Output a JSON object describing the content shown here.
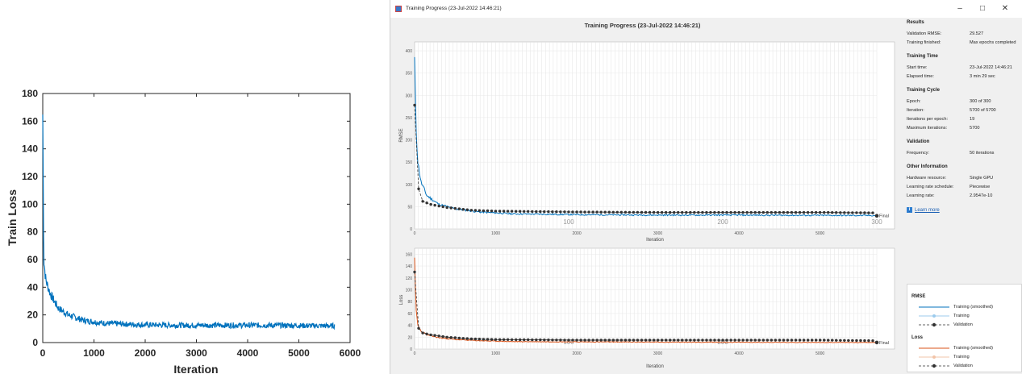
{
  "left_chart": {
    "ylabel": "Train Loss",
    "xlabel": "Iteration",
    "xticks": [
      "0",
      "1000",
      "2000",
      "3000",
      "4000",
      "5000",
      "6000"
    ],
    "yticks": [
      "0",
      "20",
      "40",
      "60",
      "80",
      "100",
      "120",
      "140",
      "160",
      "180"
    ]
  },
  "window": {
    "title": "Training Progress (23-Jul-2022 14:46:21)",
    "minimize_glyph": "–",
    "maximize_glyph": "□",
    "close_glyph": "✕"
  },
  "plot_title": "Training Progress (23-Jul-2022 14:46:21)",
  "rmse_plot": {
    "ylabel": "RMSE",
    "xlabel": "Iteration",
    "yticks": [
      "0",
      "50",
      "100",
      "150",
      "200",
      "250",
      "300",
      "350",
      "400"
    ],
    "xticks": [
      "0",
      "1000",
      "2000",
      "3000",
      "4000",
      "5000"
    ],
    "epoch_labels": [
      "100",
      "200",
      "300"
    ],
    "final_label": "Final"
  },
  "loss_plot": {
    "ylabel": "Loss",
    "xlabel": "Iteration",
    "yticks": [
      "0",
      "20",
      "40",
      "60",
      "80",
      "100",
      "120",
      "140",
      "160"
    ],
    "xticks": [
      "0",
      "1000",
      "2000",
      "3000",
      "4000",
      "5000"
    ],
    "epoch_labels": [
      "100",
      "200"
    ],
    "final_label": "Final"
  },
  "side_panel": {
    "results": {
      "title": "Results",
      "rows": [
        [
          "Validation RMSE:",
          "29.527"
        ],
        [
          "Training finished:",
          "Max epochs completed"
        ]
      ]
    },
    "training_time": {
      "title": "Training Time",
      "rows": [
        [
          "Start time:",
          "23-Jul-2022 14:46:21"
        ],
        [
          "Elapsed time:",
          "3 min 29 sec"
        ]
      ]
    },
    "training_cycle": {
      "title": "Training Cycle",
      "rows": [
        [
          "Epoch:",
          "300 of 300"
        ],
        [
          "Iteration:",
          "5700 of 5700"
        ],
        [
          "Iterations per epoch:",
          "19"
        ],
        [
          "Maximum iterations:",
          "5700"
        ]
      ]
    },
    "validation": {
      "title": "Validation",
      "rows": [
        [
          "Frequency:",
          "50 iterations"
        ]
      ]
    },
    "other": {
      "title": "Other Information",
      "rows": [
        [
          "Hardware resource:",
          "Single GPU"
        ],
        [
          "Learning rate schedule:",
          "Piecewise"
        ],
        [
          "Learning rate:",
          "2.9547e-10"
        ]
      ]
    },
    "learn_more": "Learn more",
    "info_glyph": "i"
  },
  "legend": {
    "rmse_title": "RMSE",
    "loss_title": "Loss",
    "rmse_items": [
      "Training (smoothed)",
      "Training",
      "Validation"
    ],
    "loss_items": [
      "Training (smoothed)",
      "Training",
      "Validation"
    ]
  },
  "colors": {
    "line_blue": "#0072bd",
    "light_blue": "#9ccbed",
    "orange": "#d95319",
    "light_orange": "#f2c4a8",
    "validation": "#333333"
  },
  "chart_data": [
    {
      "type": "line",
      "xlabel": "Iteration",
      "ylabel": "Train Loss",
      "xlim": [
        0,
        6000
      ],
      "ylim": [
        0,
        180
      ],
      "series": [
        {
          "values": [
            [
              0,
              165
            ],
            [
              20,
              60
            ],
            [
              60,
              45
            ],
            [
              150,
              35
            ],
            [
              300,
              25
            ],
            [
              500,
              20
            ],
            [
              800,
              16
            ],
            [
              1200,
              14
            ],
            [
              1800,
              13
            ],
            [
              2500,
              12.5
            ],
            [
              3500,
              12.5
            ],
            [
              4500,
              12.5
            ],
            [
              5700,
              12
            ]
          ]
        }
      ]
    },
    {
      "type": "line",
      "xlabel": "Iteration",
      "ylabel": "RMSE",
      "xlim": [
        0,
        5700
      ],
      "ylim": [
        0,
        420
      ],
      "series": [
        {
          "name": "Training (smoothed)",
          "values": [
            [
              0,
              380
            ],
            [
              15,
              240
            ],
            [
              40,
              150
            ],
            [
              80,
              105
            ],
            [
              150,
              75
            ],
            [
              300,
              55
            ],
            [
              500,
              45
            ],
            [
              800,
              38
            ],
            [
              1200,
              34
            ],
            [
              2000,
              32
            ],
            [
              3000,
              31
            ],
            [
              4000,
              31
            ],
            [
              5700,
              30
            ]
          ]
        },
        {
          "name": "Validation",
          "values": [
            [
              0,
              278
            ],
            [
              50,
              90
            ],
            [
              100,
              62
            ],
            [
              200,
              55
            ],
            [
              400,
              48
            ],
            [
              700,
              42
            ],
            [
              1000,
              40
            ],
            [
              2000,
              38
            ],
            [
              3000,
              37
            ],
            [
              4000,
              37
            ],
            [
              5000,
              37
            ],
            [
              5650,
              36
            ]
          ]
        }
      ],
      "final_value": 29.527
    },
    {
      "type": "line",
      "xlabel": "Iteration",
      "ylabel": "Loss",
      "xlim": [
        0,
        5700
      ],
      "ylim": [
        0,
        170
      ],
      "series": [
        {
          "name": "Training (smoothed)",
          "values": [
            [
              0,
              160
            ],
            [
              15,
              70
            ],
            [
              40,
              40
            ],
            [
              80,
              30
            ],
            [
              150,
              24
            ],
            [
              300,
              19
            ],
            [
              500,
              16
            ],
            [
              800,
              14
            ],
            [
              1200,
              12.5
            ],
            [
              2000,
              12
            ],
            [
              3500,
              11.5
            ],
            [
              5700,
              11
            ]
          ]
        },
        {
          "name": "Validation",
          "values": [
            [
              0,
              130
            ],
            [
              50,
              35
            ],
            [
              100,
              27
            ],
            [
              200,
              24
            ],
            [
              400,
              20
            ],
            [
              700,
              17
            ],
            [
              1000,
              16
            ],
            [
              2000,
              15
            ],
            [
              3000,
              15
            ],
            [
              4000,
              15
            ],
            [
              5000,
              15
            ],
            [
              5650,
              14
            ]
          ]
        }
      ],
      "final_value": 11
    }
  ]
}
